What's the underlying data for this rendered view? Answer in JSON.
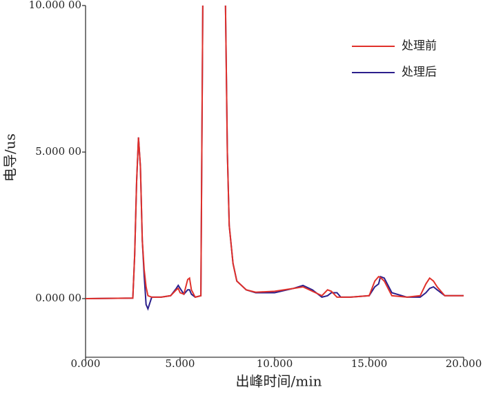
{
  "chart_data": {
    "type": "line",
    "x_label": "出峰时间/min",
    "y_label": "电导/us",
    "x": [
      0,
      2.5,
      2.6,
      2.7,
      2.8,
      2.9,
      3.0,
      3.1,
      3.2,
      3.3,
      3.5,
      4.0,
      4.5,
      4.8,
      4.9,
      5.0,
      5.2,
      5.4,
      5.5,
      5.6,
      5.8,
      6.1,
      6.2,
      6.8,
      7.4,
      7.5,
      7.6,
      7.8,
      8.0,
      8.5,
      9.0,
      10.0,
      11.0,
      11.5,
      12.0,
      12.5,
      12.8,
      13.0,
      13.3,
      13.5,
      14.0,
      15.0,
      15.3,
      15.5,
      15.6,
      15.8,
      16.2,
      17.0,
      17.7,
      18.0,
      18.2,
      18.4,
      18.6,
      19.0,
      20.0
    ],
    "series": [
      {
        "name": "处理后",
        "color": "#2b1f8c",
        "values": [
          0,
          0.02,
          1.5,
          4,
          5.5,
          4.5,
          2.0,
          0.8,
          -0.2,
          -0.35,
          0.05,
          0.05,
          0.1,
          0.35,
          0.45,
          0.35,
          0.15,
          0.3,
          0.3,
          0.15,
          0.05,
          0.1,
          10,
          null,
          10,
          5,
          2.5,
          1.2,
          0.6,
          0.3,
          0.2,
          0.2,
          0.35,
          0.45,
          0.3,
          0.05,
          0.1,
          0.2,
          0.2,
          0.05,
          0.05,
          0.1,
          0.4,
          0.5,
          0.75,
          0.7,
          0.2,
          0.05,
          0.05,
          0.2,
          0.35,
          0.4,
          0.3,
          0.1,
          0.1
        ]
      },
      {
        "name": "处理前",
        "color": "#e0302a",
        "values": [
          0,
          0.02,
          1.5,
          4,
          5.5,
          4.5,
          2.0,
          1.0,
          0.4,
          0.1,
          0.05,
          0.05,
          0.1,
          0.3,
          0.35,
          0.2,
          0.15,
          0.65,
          0.7,
          0.3,
          0.05,
          0.1,
          10,
          null,
          10,
          5,
          2.5,
          1.2,
          0.6,
          0.3,
          0.22,
          0.25,
          0.35,
          0.4,
          0.25,
          0.1,
          0.3,
          0.25,
          0.05,
          0.05,
          0.05,
          0.1,
          0.6,
          0.75,
          0.72,
          0.6,
          0.1,
          0.05,
          0.1,
          0.5,
          0.7,
          0.6,
          0.4,
          0.1,
          0.1
        ]
      }
    ],
    "xlim": [
      0,
      20
    ],
    "xticks": [
      {
        "value": 0,
        "label": "0.000"
      },
      {
        "value": 5,
        "label": "5.000"
      },
      {
        "value": 10,
        "label": "10.000"
      },
      {
        "value": 15,
        "label": "15.000"
      },
      {
        "value": 20,
        "label": "20.000"
      }
    ],
    "ylim": [
      -2,
      10
    ],
    "yticks": [
      {
        "value": 0,
        "label": "0.000 00"
      },
      {
        "value": 5,
        "label": "5.000 00"
      },
      {
        "value": 10,
        "label": "10.000 00"
      }
    ],
    "legend": "upper right"
  }
}
